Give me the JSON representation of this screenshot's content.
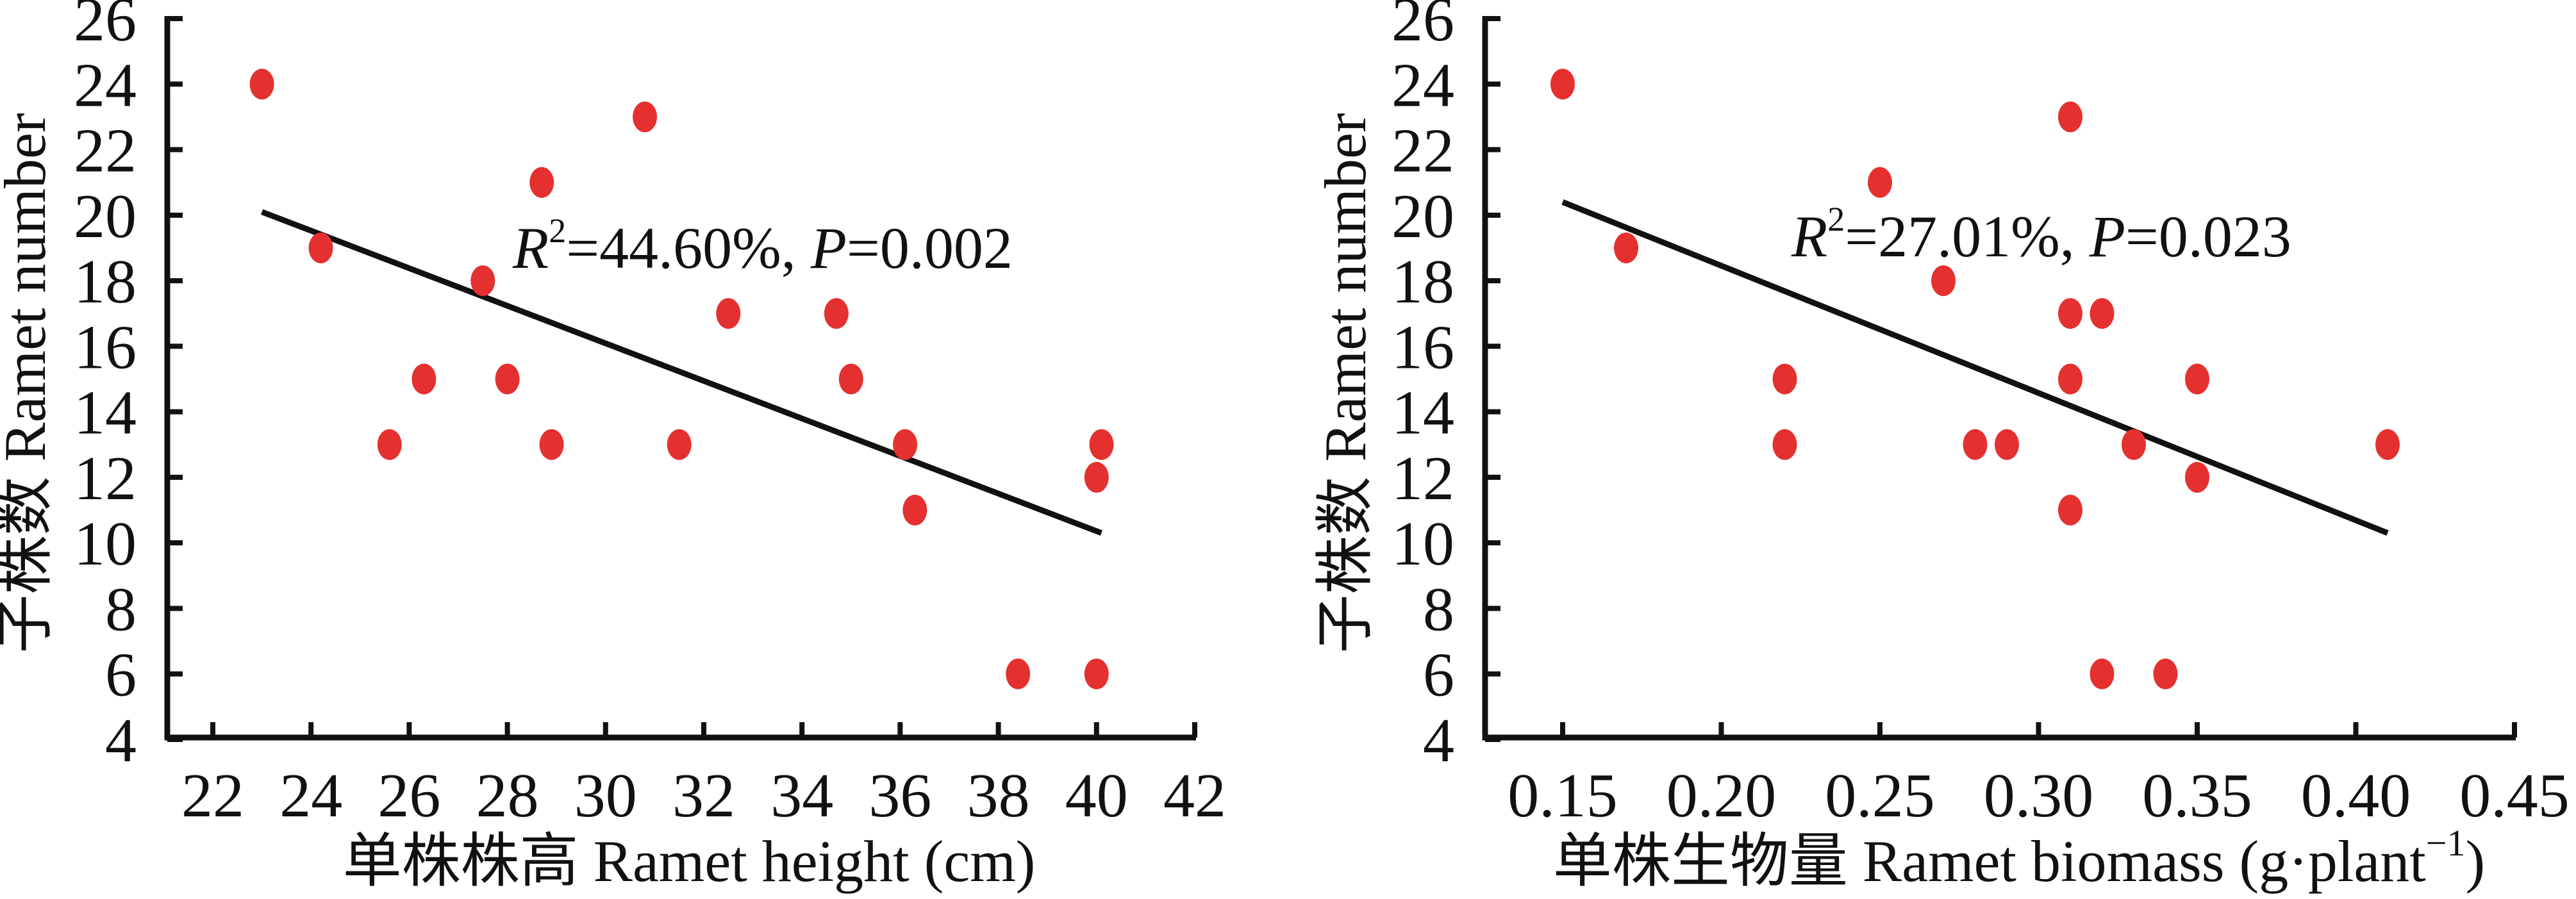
{
  "chart_data": [
    {
      "type": "scatter",
      "title": "",
      "xlabel": "单株株高 Ramet height (cm)",
      "ylabel": "子株数 Ramet number",
      "xlim": [
        21,
        42
      ],
      "ylim": [
        4,
        26
      ],
      "xticks": [
        22,
        24,
        26,
        28,
        30,
        32,
        34,
        36,
        38,
        40,
        42
      ],
      "yticks": [
        4,
        6,
        8,
        10,
        12,
        14,
        16,
        18,
        20,
        22,
        24,
        26
      ],
      "xtick_labels": [
        "22",
        "24",
        "26",
        "28",
        "30",
        "32",
        "34",
        "36",
        "38",
        "40",
        "42"
      ],
      "ytick_labels": [
        "4",
        "6",
        "8",
        "10",
        "12",
        "14",
        "16",
        "18",
        "20",
        "22",
        "24",
        "26"
      ],
      "grid": false,
      "point_color": "#e53030",
      "points": [
        {
          "x": 23.0,
          "y": 24
        },
        {
          "x": 24.2,
          "y": 19
        },
        {
          "x": 25.6,
          "y": 13
        },
        {
          "x": 26.3,
          "y": 15
        },
        {
          "x": 27.5,
          "y": 18
        },
        {
          "x": 28.0,
          "y": 15
        },
        {
          "x": 28.7,
          "y": 21
        },
        {
          "x": 28.9,
          "y": 13
        },
        {
          "x": 30.8,
          "y": 23
        },
        {
          "x": 31.5,
          "y": 13
        },
        {
          "x": 32.5,
          "y": 17
        },
        {
          "x": 34.7,
          "y": 17
        },
        {
          "x": 35.0,
          "y": 15
        },
        {
          "x": 36.1,
          "y": 13
        },
        {
          "x": 36.3,
          "y": 11
        },
        {
          "x": 38.4,
          "y": 6
        },
        {
          "x": 40.0,
          "y": 6
        },
        {
          "x": 40.0,
          "y": 12
        },
        {
          "x": 40.1,
          "y": 13
        }
      ],
      "fit_line": {
        "x": [
          23.0,
          40.1
        ],
        "y": [
          20.1,
          10.3
        ]
      },
      "annotation": {
        "r_label": "R",
        "r_sup": "2",
        "r_value": "=44.60%, ",
        "p_label": "P",
        "p_value": "=0.002"
      }
    },
    {
      "type": "scatter",
      "title": "",
      "xlabel": "单株生物量 Ramet biomass (g·plant",
      "xlabel_sup": "−1",
      "xlabel_close": ")",
      "ylabel": "子株数 Ramet number",
      "xlim": [
        0.125,
        0.45
      ],
      "ylim": [
        4,
        26
      ],
      "xticks": [
        0.15,
        0.2,
        0.25,
        0.3,
        0.35,
        0.4,
        0.45
      ],
      "yticks": [
        4,
        6,
        8,
        10,
        12,
        14,
        16,
        18,
        20,
        22,
        24,
        26
      ],
      "xtick_labels": [
        "0.15",
        "0.20",
        "0.25",
        "0.30",
        "0.35",
        "0.40",
        "0.45"
      ],
      "ytick_labels": [
        "4",
        "6",
        "8",
        "10",
        "12",
        "14",
        "16",
        "18",
        "20",
        "22",
        "24",
        "26"
      ],
      "grid": false,
      "point_color": "#e53030",
      "points": [
        {
          "x": 0.15,
          "y": 24
        },
        {
          "x": 0.17,
          "y": 19
        },
        {
          "x": 0.22,
          "y": 15
        },
        {
          "x": 0.22,
          "y": 13
        },
        {
          "x": 0.25,
          "y": 21
        },
        {
          "x": 0.27,
          "y": 18
        },
        {
          "x": 0.28,
          "y": 13
        },
        {
          "x": 0.29,
          "y": 13
        },
        {
          "x": 0.31,
          "y": 23
        },
        {
          "x": 0.31,
          "y": 17
        },
        {
          "x": 0.31,
          "y": 15
        },
        {
          "x": 0.31,
          "y": 11
        },
        {
          "x": 0.32,
          "y": 17
        },
        {
          "x": 0.32,
          "y": 6
        },
        {
          "x": 0.33,
          "y": 13
        },
        {
          "x": 0.34,
          "y": 6
        },
        {
          "x": 0.35,
          "y": 15
        },
        {
          "x": 0.35,
          "y": 12
        },
        {
          "x": 0.41,
          "y": 13
        }
      ],
      "fit_line": {
        "x": [
          0.15,
          0.41
        ],
        "y": [
          20.4,
          10.3
        ]
      },
      "annotation": {
        "r_label": "R",
        "r_sup": "2",
        "r_value": "=27.01%, ",
        "p_label": "P",
        "p_value": "=0.023"
      }
    }
  ]
}
